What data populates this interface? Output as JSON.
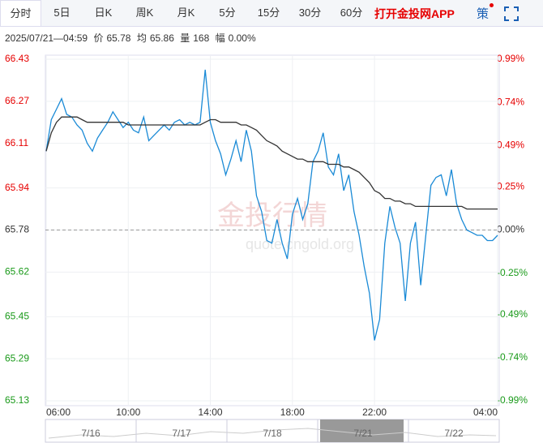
{
  "tabs": [
    "分时",
    "5日",
    "日K",
    "周K",
    "月K",
    "5分",
    "15分",
    "30分",
    "60分"
  ],
  "promo": "打开金投网APP",
  "strategy": "策",
  "info": {
    "time": "2025/07/21—04:59",
    "price_label": "价",
    "price": "65.78",
    "avg_label": "均",
    "avg": "65.86",
    "vol_label": "量",
    "vol": "168",
    "amp_label": "幅",
    "amp": "0.00%"
  },
  "watermark": {
    "brand": "金投行情",
    "url": "quote.cngold.org"
  },
  "navigator": {
    "dates": [
      "7/16",
      "7/17",
      "7/18",
      "7/21",
      "7/22"
    ]
  },
  "chart_data": {
    "type": "line",
    "x": [
      "06:00",
      "06:15",
      "06:30",
      "06:45",
      "07:00",
      "07:15",
      "07:30",
      "07:45",
      "08:00",
      "08:15",
      "08:30",
      "08:45",
      "09:00",
      "09:15",
      "09:30",
      "09:45",
      "10:00",
      "10:15",
      "10:30",
      "10:45",
      "11:00",
      "11:15",
      "11:30",
      "11:45",
      "12:00",
      "12:15",
      "12:30",
      "12:45",
      "13:00",
      "13:15",
      "13:30",
      "13:45",
      "14:00",
      "14:15",
      "14:30",
      "14:45",
      "15:00",
      "15:15",
      "15:30",
      "15:45",
      "16:00",
      "16:15",
      "16:30",
      "16:45",
      "17:00",
      "17:15",
      "17:30",
      "17:45",
      "18:00",
      "18:15",
      "18:30",
      "18:45",
      "19:00",
      "19:15",
      "19:30",
      "19:45",
      "20:00",
      "20:15",
      "20:30",
      "20:45",
      "21:00",
      "21:15",
      "21:30",
      "21:45",
      "22:00",
      "22:15",
      "22:30",
      "22:45",
      "23:00",
      "23:15",
      "23:30",
      "23:45",
      "00:00",
      "00:15",
      "00:30",
      "00:45",
      "01:00",
      "01:15",
      "01:30",
      "01:45",
      "02:00",
      "02:15",
      "02:30",
      "02:45",
      "03:00",
      "03:15",
      "03:30",
      "03:45",
      "04:00"
    ],
    "series": [
      {
        "name": "价",
        "color": "#1a8ad6",
        "values": [
          66.08,
          66.2,
          66.24,
          66.28,
          66.22,
          66.21,
          66.18,
          66.16,
          66.11,
          66.08,
          66.13,
          66.16,
          66.19,
          66.23,
          66.2,
          66.17,
          66.19,
          66.16,
          66.15,
          66.21,
          66.12,
          66.14,
          66.16,
          66.18,
          66.16,
          66.19,
          66.2,
          66.18,
          66.19,
          66.18,
          66.19,
          66.39,
          66.19,
          66.12,
          66.07,
          65.99,
          66.05,
          66.12,
          66.04,
          66.16,
          66.08,
          65.91,
          65.85,
          65.74,
          65.73,
          65.82,
          65.73,
          65.67,
          65.84,
          65.9,
          65.82,
          65.88,
          66.04,
          66.08,
          66.15,
          66.02,
          65.99,
          66.07,
          65.93,
          65.99,
          65.85,
          65.76,
          65.64,
          65.54,
          65.36,
          65.44,
          65.73,
          65.87,
          65.79,
          65.73,
          65.51,
          65.73,
          65.81,
          65.57,
          65.76,
          65.95,
          65.98,
          65.99,
          65.91,
          66.01,
          65.88,
          65.82,
          65.78,
          65.77,
          65.76,
          65.76,
          65.74,
          65.74,
          65.76
        ]
      },
      {
        "name": "均",
        "color": "#333333",
        "values": [
          66.08,
          66.15,
          66.19,
          66.21,
          66.21,
          66.21,
          66.21,
          66.2,
          66.19,
          66.19,
          66.19,
          66.19,
          66.19,
          66.19,
          66.19,
          66.19,
          66.18,
          66.18,
          66.18,
          66.18,
          66.18,
          66.18,
          66.18,
          66.18,
          66.18,
          66.18,
          66.18,
          66.18,
          66.18,
          66.18,
          66.18,
          66.19,
          66.2,
          66.2,
          66.19,
          66.19,
          66.19,
          66.19,
          66.18,
          66.18,
          66.17,
          66.16,
          66.14,
          66.12,
          66.11,
          66.1,
          66.08,
          66.07,
          66.06,
          66.05,
          66.05,
          66.04,
          66.04,
          66.04,
          66.04,
          66.03,
          66.03,
          66.03,
          66.02,
          66.02,
          66.01,
          66.0,
          65.98,
          65.96,
          65.93,
          65.92,
          65.9,
          65.9,
          65.89,
          65.89,
          65.88,
          65.88,
          65.87,
          65.87,
          65.87,
          65.87,
          65.87,
          65.87,
          65.87,
          65.87,
          65.87,
          65.87,
          65.86,
          65.86,
          65.86,
          65.86,
          65.86,
          65.86,
          65.86
        ]
      }
    ],
    "xticks": [
      "06:00",
      "10:00",
      "14:00",
      "18:00",
      "22:00",
      "04:00"
    ],
    "ylim": [
      65.13,
      66.43
    ],
    "yticks": [
      66.43,
      66.27,
      66.11,
      65.94,
      65.78,
      65.62,
      65.45,
      65.29,
      65.13
    ],
    "y2lim": [
      -0.99,
      0.99
    ],
    "y2ticks": [
      {
        "value": 0.99,
        "label": "0.99%"
      },
      {
        "value": 0.74,
        "label": "0.74%"
      },
      {
        "value": 0.49,
        "label": "0.49%"
      },
      {
        "value": 0.25,
        "label": "0.25%"
      },
      {
        "value": 0,
        "label": "0.00%"
      },
      {
        "value": -0.25,
        "label": "-0.25%"
      },
      {
        "value": -0.49,
        "label": "-0.49%"
      },
      {
        "value": -0.74,
        "label": "-0.74%"
      },
      {
        "value": -0.99,
        "label": "-0.99%"
      }
    ],
    "base_line": 65.78,
    "up_color": "#e60000",
    "down_color": "#1a9a1a",
    "grid": true
  }
}
